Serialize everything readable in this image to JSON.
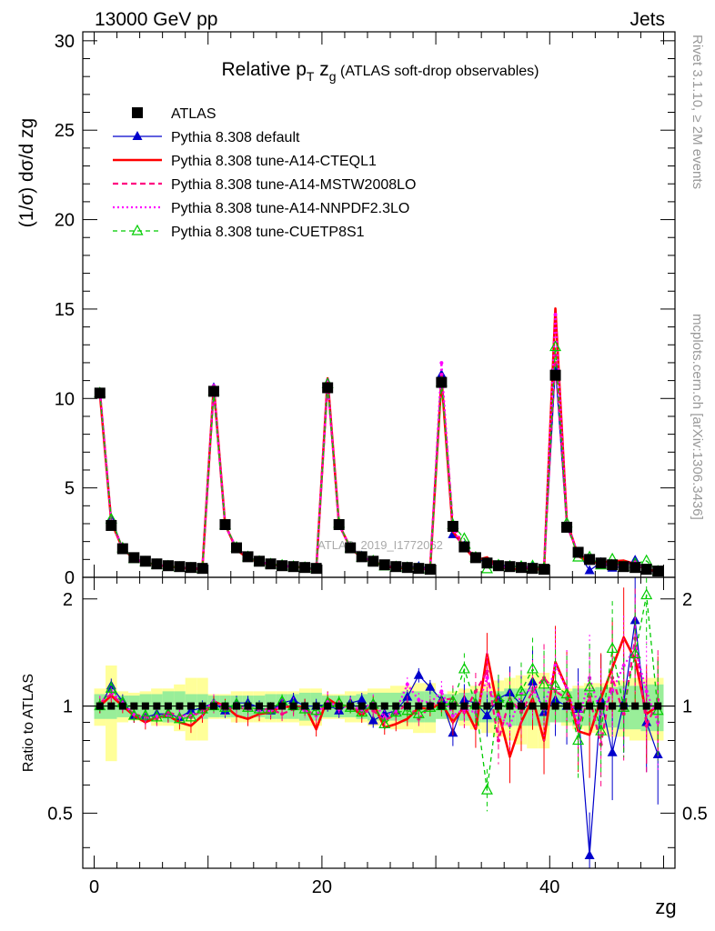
{
  "header": {
    "left": "13000 GeV pp",
    "right": "Jets"
  },
  "side_labels": {
    "rivet": "Rivet 3.1.10, ≥ 2M events",
    "mcplots": "mcplots.cern.ch [arXiv:1306.3436]"
  },
  "watermark": "ATLAS_2019_I1772062",
  "chart_data": {
    "type": "line",
    "title": "Relative pT zg (ATLAS soft-drop observables)",
    "title_parts": {
      "main": "Relative p",
      "sub1": "T",
      "mid": " z",
      "sub2": "g",
      "tail": " (ATLAS soft-drop observables)"
    },
    "xlabel": "zg",
    "ylabel": "(1/σ) dσ/d zg",
    "ratio_ylabel": "Ratio to ATLAS",
    "xlim": [
      -1,
      51
    ],
    "ylim": [
      0,
      30.5
    ],
    "ratio_ylim": [
      0.35,
      2.3
    ],
    "xticks": [
      0,
      20,
      40
    ],
    "yticks": [
      0,
      5,
      10,
      15,
      20,
      25,
      30
    ],
    "ratio_yticks": [
      0.5,
      1,
      2
    ],
    "legend": {
      "position": "top-left",
      "entries": [
        {
          "label": "ATLAS",
          "color": "#000000",
          "style": "data"
        },
        {
          "label": "Pythia 8.308 default",
          "color": "#0000cc",
          "style": "solid-triangle"
        },
        {
          "label": "Pythia 8.308 tune-A14-CTEQL1",
          "color": "#ff0000",
          "style": "thick-solid"
        },
        {
          "label": "Pythia 8.308 tune-A14-MSTW2008LO",
          "color": "#ff0080",
          "style": "dashed"
        },
        {
          "label": "Pythia 8.308 tune-A14-NNPDF2.3LO",
          "color": "#ff00ff",
          "style": "dotted"
        },
        {
          "label": "Pythia 8.308 tune-CUETP8S1",
          "color": "#00cc00",
          "style": "dashed-open-triangle"
        }
      ]
    },
    "x": [
      0.5,
      1.5,
      2.5,
      3.5,
      4.5,
      5.5,
      6.5,
      7.5,
      8.5,
      9.5,
      10.5,
      11.5,
      12.5,
      13.5,
      14.5,
      15.5,
      16.5,
      17.5,
      18.5,
      19.5,
      20.5,
      21.5,
      22.5,
      23.5,
      24.5,
      25.5,
      26.5,
      27.5,
      28.5,
      29.5,
      30.5,
      31.5,
      32.5,
      33.5,
      34.5,
      35.5,
      36.5,
      37.5,
      38.5,
      39.5,
      40.5,
      41.5,
      42.5,
      43.5,
      44.5,
      45.5,
      46.5,
      47.5,
      48.5,
      49.5
    ],
    "atlas_values": [
      10.3,
      2.9,
      1.6,
      1.1,
      0.9,
      0.75,
      0.65,
      0.6,
      0.55,
      0.5,
      10.4,
      2.95,
      1.65,
      1.15,
      0.9,
      0.75,
      0.65,
      0.6,
      0.55,
      0.5,
      10.6,
      2.95,
      1.65,
      1.15,
      0.9,
      0.7,
      0.6,
      0.55,
      0.5,
      0.45,
      10.9,
      2.85,
      1.7,
      1.1,
      0.8,
      0.65,
      0.6,
      0.55,
      0.5,
      0.45,
      11.3,
      2.8,
      1.4,
      1.0,
      0.8,
      0.7,
      0.6,
      0.55,
      0.45,
      0.35
    ],
    "series": [
      {
        "name": "Pythia 8.308 default",
        "ratio": [
          1.0,
          1.14,
          1.03,
          0.94,
          0.93,
          0.95,
          0.95,
          0.93,
          0.97,
          0.99,
          1.02,
          0.97,
          1.02,
          1.02,
          0.99,
          0.97,
          1.02,
          1.04,
          1.0,
          1.0,
          1.01,
          0.97,
          1.02,
          1.04,
          0.91,
          0.95,
          0.97,
          1.06,
          1.22,
          1.13,
          1.04,
          0.84,
          1.04,
          1.02,
          0.94,
          1.05,
          1.09,
          1.01,
          1.17,
          0.96,
          1.04,
          1.0,
          0.98,
          0.38,
          1.04,
          0.74,
          1.02,
          1.74,
          0.9,
          0.73
        ]
      },
      {
        "name": "Pythia 8.308 tune-A14-CTEQL1",
        "ratio": [
          1.0,
          1.07,
          1.0,
          0.94,
          0.9,
          0.93,
          0.94,
          0.9,
          0.88,
          0.94,
          1.03,
          1.0,
          0.94,
          0.92,
          0.95,
          0.96,
          1.0,
          0.99,
          1.0,
          0.86,
          1.05,
          1.0,
          1.0,
          0.94,
          1.02,
          0.87,
          0.89,
          0.92,
          0.99,
          0.98,
          1.02,
          0.9,
          1.0,
          0.86,
          1.4,
          0.96,
          0.72,
          0.9,
          1.05,
          0.8,
          1.33,
          1.12,
          0.85,
          0.83,
          1.05,
          1.28,
          1.56,
          1.35,
          0.95,
          1.0
        ]
      },
      {
        "name": "Pythia 8.308 tune-A14-MSTW2008LO",
        "ratio": [
          1.02,
          1.08,
          1.01,
          0.95,
          0.93,
          0.92,
          0.96,
          0.94,
          0.93,
          0.97,
          1.0,
          0.98,
          0.99,
          0.98,
          0.98,
          0.98,
          0.95,
          0.98,
          0.98,
          0.94,
          1.02,
          1.01,
          1.0,
          0.96,
          0.97,
          0.91,
          0.95,
          1.02,
          0.92,
          1.0,
          1.04,
          1.05,
          0.96,
          1.1,
          1.25,
          0.8,
          1.05,
          0.96,
          1.1,
          1.2,
          1.1,
          1.05,
          0.88,
          1.06,
          0.78,
          1.2,
          0.95,
          1.55,
          0.88,
          1.04
        ]
      },
      {
        "name": "Pythia 8.308 tune-A14-NNPDF2.3LO",
        "ratio": [
          1.02,
          1.1,
          1.02,
          0.95,
          0.92,
          0.94,
          0.94,
          0.93,
          0.95,
          0.96,
          1.03,
          0.99,
          1.0,
          0.98,
          0.97,
          0.97,
          1.0,
          1.01,
          0.97,
          0.94,
          1.04,
          0.98,
          1.01,
          0.97,
          1.03,
          0.93,
          0.97,
          1.15,
          1.04,
          1.02,
          1.1,
          0.94,
          0.98,
          0.96,
          1.2,
          0.94,
          0.88,
          1.08,
          1.12,
          0.98,
          1.3,
          1.12,
          0.9,
          1.2,
          0.95,
          1.1,
          1.3,
          1.45,
          1.1,
          0.9
        ]
      },
      {
        "name": "Pythia 8.308 tune-CUETP8S1",
        "ratio": [
          1.0,
          1.12,
          1.02,
          0.94,
          0.94,
          0.93,
          0.95,
          0.92,
          0.93,
          0.98,
          1.0,
          0.99,
          1.01,
          0.99,
          0.98,
          0.98,
          1.03,
          1.0,
          0.98,
          0.97,
          1.02,
          1.02,
          0.99,
          0.96,
          1.01,
          0.89,
          0.96,
          0.97,
          0.95,
          0.99,
          1.0,
          1.03,
          1.27,
          1.01,
          0.58,
          1.05,
          1.02,
          1.1,
          1.27,
          1.15,
          1.14,
          1.08,
          0.8,
          1.13,
          0.85,
          1.45,
          0.99,
          1.4,
          2.05,
          0.97
        ]
      }
    ],
    "ratio_bands": {
      "stat": [
        0.08,
        0.08,
        0.07,
        0.07,
        0.08,
        0.08,
        0.1,
        0.1,
        0.08,
        0.08,
        0.07,
        0.07,
        0.07,
        0.07,
        0.07,
        0.08,
        0.08,
        0.08,
        0.09,
        0.09,
        0.07,
        0.07,
        0.07,
        0.08,
        0.09,
        0.09,
        0.09,
        0.1,
        0.1,
        0.1,
        0.08,
        0.08,
        0.09,
        0.1,
        0.1,
        0.1,
        0.12,
        0.12,
        0.12,
        0.12,
        0.1,
        0.1,
        0.12,
        0.12,
        0.13,
        0.13,
        0.14,
        0.14,
        0.15,
        0.15
      ],
      "total": [
        0.12,
        0.3,
        0.1,
        0.09,
        0.1,
        0.12,
        0.12,
        0.15,
        0.2,
        0.2,
        0.08,
        0.08,
        0.1,
        0.1,
        0.1,
        0.1,
        0.1,
        0.1,
        0.12,
        0.12,
        0.08,
        0.08,
        0.1,
        0.1,
        0.12,
        0.12,
        0.14,
        0.14,
        0.16,
        0.16,
        0.08,
        0.1,
        0.12,
        0.14,
        0.16,
        0.18,
        0.2,
        0.22,
        0.24,
        0.24,
        0.1,
        0.12,
        0.14,
        0.16,
        0.16,
        0.18,
        0.18,
        0.2,
        0.2,
        0.2
      ]
    }
  }
}
